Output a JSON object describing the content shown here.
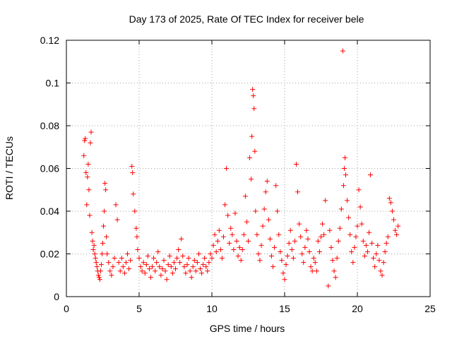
{
  "chart_data": {
    "type": "scatter",
    "title": "Day 173 of 2025, Rate Of TEC Index for receiver bele",
    "xlabel": "GPS time / hours",
    "ylabel": "ROTI / TECUs",
    "xlim": [
      0,
      25
    ],
    "ylim": [
      0,
      0.12
    ],
    "x_ticks": [
      "0",
      "5",
      "10",
      "15",
      "20",
      "25"
    ],
    "y_ticks": [
      "0",
      "0.02",
      "0.04",
      "0.06",
      "0.08",
      "0.1",
      "0.12"
    ],
    "grid": true,
    "marker": "+",
    "color": "#ff0000",
    "series": [
      {
        "points": [
          [
            1.2,
            0.066
          ],
          [
            1.25,
            0.073
          ],
          [
            1.3,
            0.074
          ],
          [
            1.35,
            0.058
          ],
          [
            1.4,
            0.043
          ],
          [
            1.45,
            0.056
          ],
          [
            1.5,
            0.062
          ],
          [
            1.55,
            0.05
          ],
          [
            1.6,
            0.038
          ],
          [
            1.65,
            0.072
          ],
          [
            1.7,
            0.077
          ],
          [
            1.75,
            0.03
          ],
          [
            1.8,
            0.026
          ],
          [
            1.85,
            0.022
          ],
          [
            1.9,
            0.024
          ],
          [
            1.95,
            0.02
          ],
          [
            2.0,
            0.018
          ],
          [
            2.05,
            0.016
          ],
          [
            2.1,
            0.014
          ],
          [
            2.15,
            0.012
          ],
          [
            2.2,
            0.01
          ],
          [
            2.25,
            0.009
          ],
          [
            2.3,
            0.008
          ],
          [
            2.35,
            0.012
          ],
          [
            2.4,
            0.015
          ],
          [
            2.45,
            0.02
          ],
          [
            2.5,
            0.025
          ],
          [
            2.55,
            0.033
          ],
          [
            2.6,
            0.04
          ],
          [
            2.65,
            0.053
          ],
          [
            2.7,
            0.05
          ],
          [
            2.75,
            0.028
          ],
          [
            2.8,
            0.02
          ],
          [
            2.9,
            0.016
          ],
          [
            3.0,
            0.012
          ],
          [
            3.1,
            0.01
          ],
          [
            3.2,
            0.014
          ],
          [
            3.3,
            0.018
          ],
          [
            3.4,
            0.043
          ],
          [
            3.5,
            0.036
          ],
          [
            3.6,
            0.016
          ],
          [
            3.7,
            0.012
          ],
          [
            3.8,
            0.018
          ],
          [
            3.9,
            0.014
          ],
          [
            4.0,
            0.011
          ],
          [
            4.1,
            0.016
          ],
          [
            4.2,
            0.02
          ],
          [
            4.3,
            0.013
          ],
          [
            4.4,
            0.017
          ],
          [
            4.5,
            0.061
          ],
          [
            4.55,
            0.058
          ],
          [
            4.6,
            0.048
          ],
          [
            4.7,
            0.04
          ],
          [
            4.8,
            0.032
          ],
          [
            4.85,
            0.028
          ],
          [
            4.9,
            0.022
          ],
          [
            5.0,
            0.018
          ],
          [
            5.1,
            0.014
          ],
          [
            5.2,
            0.012
          ],
          [
            5.3,
            0.016
          ],
          [
            5.4,
            0.011
          ],
          [
            5.5,
            0.015
          ],
          [
            5.6,
            0.019
          ],
          [
            5.7,
            0.013
          ],
          [
            5.8,
            0.009
          ],
          [
            5.9,
            0.014
          ],
          [
            6.0,
            0.018
          ],
          [
            6.1,
            0.012
          ],
          [
            6.2,
            0.016
          ],
          [
            6.3,
            0.021
          ],
          [
            6.4,
            0.014
          ],
          [
            6.5,
            0.01
          ],
          [
            6.6,
            0.013
          ],
          [
            6.7,
            0.017
          ],
          [
            6.8,
            0.012
          ],
          [
            6.9,
            0.008
          ],
          [
            7.0,
            0.015
          ],
          [
            7.1,
            0.019
          ],
          [
            7.2,
            0.014
          ],
          [
            7.3,
            0.011
          ],
          [
            7.4,
            0.016
          ],
          [
            7.5,
            0.013
          ],
          [
            7.6,
            0.018
          ],
          [
            7.7,
            0.022
          ],
          [
            7.8,
            0.016
          ],
          [
            7.9,
            0.027
          ],
          [
            8.0,
            0.019
          ],
          [
            8.1,
            0.014
          ],
          [
            8.2,
            0.011
          ],
          [
            8.3,
            0.015
          ],
          [
            8.4,
            0.018
          ],
          [
            8.5,
            0.012
          ],
          [
            8.6,
            0.009
          ],
          [
            8.7,
            0.014
          ],
          [
            8.8,
            0.017
          ],
          [
            8.9,
            0.012
          ],
          [
            9.0,
            0.016
          ],
          [
            9.1,
            0.02
          ],
          [
            9.2,
            0.013
          ],
          [
            9.3,
            0.011
          ],
          [
            9.4,
            0.015
          ],
          [
            9.5,
            0.018
          ],
          [
            9.6,
            0.014
          ],
          [
            9.7,
            0.012
          ],
          [
            9.8,
            0.016
          ],
          [
            9.9,
            0.02
          ],
          [
            10.0,
            0.018
          ],
          [
            10.1,
            0.024
          ],
          [
            10.2,
            0.029
          ],
          [
            10.3,
            0.021
          ],
          [
            10.4,
            0.026
          ],
          [
            10.5,
            0.031
          ],
          [
            10.6,
            0.022
          ],
          [
            10.7,
            0.018
          ],
          [
            10.8,
            0.028
          ],
          [
            10.9,
            0.043
          ],
          [
            11.0,
            0.06
          ],
          [
            11.1,
            0.038
          ],
          [
            11.2,
            0.025
          ],
          [
            11.3,
            0.032
          ],
          [
            11.4,
            0.029
          ],
          [
            11.5,
            0.022
          ],
          [
            11.6,
            0.039
          ],
          [
            11.7,
            0.026
          ],
          [
            11.8,
            0.019
          ],
          [
            11.9,
            0.023
          ],
          [
            12.0,
            0.017
          ],
          [
            12.1,
            0.022
          ],
          [
            12.2,
            0.029
          ],
          [
            12.3,
            0.047
          ],
          [
            12.4,
            0.035
          ],
          [
            12.5,
            0.026
          ],
          [
            12.6,
            0.065
          ],
          [
            12.7,
            0.055
          ],
          [
            12.75,
            0.075
          ],
          [
            12.8,
            0.097
          ],
          [
            12.85,
            0.094
          ],
          [
            12.9,
            0.088
          ],
          [
            12.95,
            0.068
          ],
          [
            13.0,
            0.04
          ],
          [
            13.1,
            0.029
          ],
          [
            13.2,
            0.02
          ],
          [
            13.3,
            0.017
          ],
          [
            13.4,
            0.024
          ],
          [
            13.5,
            0.033
          ],
          [
            13.6,
            0.041
          ],
          [
            13.7,
            0.049
          ],
          [
            13.8,
            0.054
          ],
          [
            13.9,
            0.036
          ],
          [
            14.0,
            0.027
          ],
          [
            14.1,
            0.019
          ],
          [
            14.2,
            0.014
          ],
          [
            14.3,
            0.023
          ],
          [
            14.4,
            0.052
          ],
          [
            14.5,
            0.04
          ],
          [
            14.6,
            0.029
          ],
          [
            14.7,
            0.021
          ],
          [
            14.8,
            0.017
          ],
          [
            14.9,
            0.011
          ],
          [
            15.0,
            0.008
          ],
          [
            15.1,
            0.015
          ],
          [
            15.2,
            0.019
          ],
          [
            15.3,
            0.025
          ],
          [
            15.4,
            0.031
          ],
          [
            15.5,
            0.022
          ],
          [
            15.6,
            0.018
          ],
          [
            15.7,
            0.026
          ],
          [
            15.8,
            0.062
          ],
          [
            15.9,
            0.049
          ],
          [
            16.0,
            0.034
          ],
          [
            16.1,
            0.028
          ],
          [
            16.2,
            0.02
          ],
          [
            16.3,
            0.016
          ],
          [
            16.4,
            0.023
          ],
          [
            16.5,
            0.031
          ],
          [
            16.6,
            0.027
          ],
          [
            16.7,
            0.021
          ],
          [
            16.8,
            0.014
          ],
          [
            16.9,
            0.012
          ],
          [
            17.0,
            0.018
          ],
          [
            17.1,
            0.016
          ],
          [
            17.2,
            0.012
          ],
          [
            17.3,
            0.026
          ],
          [
            17.4,
            0.021
          ],
          [
            17.5,
            0.028
          ],
          [
            17.6,
            0.034
          ],
          [
            17.7,
            0.029
          ],
          [
            17.8,
            0.045
          ],
          [
            18.0,
            0.005
          ],
          [
            18.1,
            0.031
          ],
          [
            18.2,
            0.023
          ],
          [
            18.3,
            0.017
          ],
          [
            18.4,
            0.012
          ],
          [
            18.5,
            0.009
          ],
          [
            18.6,
            0.018
          ],
          [
            18.7,
            0.026
          ],
          [
            18.8,
            0.032
          ],
          [
            18.9,
            0.041
          ],
          [
            19.0,
            0.115
          ],
          [
            19.05,
            0.052
          ],
          [
            19.1,
            0.06
          ],
          [
            19.15,
            0.065
          ],
          [
            19.2,
            0.057
          ],
          [
            19.3,
            0.045
          ],
          [
            19.4,
            0.037
          ],
          [
            19.5,
            0.029
          ],
          [
            19.6,
            0.021
          ],
          [
            19.7,
            0.016
          ],
          [
            19.8,
            0.023
          ],
          [
            19.9,
            0.028
          ],
          [
            20.0,
            0.033
          ],
          [
            20.1,
            0.05
          ],
          [
            20.2,
            0.042
          ],
          [
            20.3,
            0.034
          ],
          [
            20.4,
            0.026
          ],
          [
            20.5,
            0.019
          ],
          [
            20.6,
            0.024
          ],
          [
            20.7,
            0.021
          ],
          [
            20.8,
            0.03
          ],
          [
            20.9,
            0.057
          ],
          [
            21.0,
            0.025
          ],
          [
            21.1,
            0.018
          ],
          [
            21.2,
            0.014
          ],
          [
            21.3,
            0.02
          ],
          [
            21.4,
            0.024
          ],
          [
            21.5,
            0.017
          ],
          [
            21.6,
            0.012
          ],
          [
            21.7,
            0.01
          ],
          [
            21.8,
            0.016
          ],
          [
            21.9,
            0.021
          ],
          [
            22.0,
            0.025
          ],
          [
            22.1,
            0.028
          ],
          [
            22.2,
            0.046
          ],
          [
            22.3,
            0.044
          ],
          [
            22.4,
            0.04
          ],
          [
            22.5,
            0.036
          ],
          [
            22.6,
            0.031
          ],
          [
            22.7,
            0.029
          ],
          [
            22.8,
            0.033
          ]
        ]
      }
    ]
  }
}
